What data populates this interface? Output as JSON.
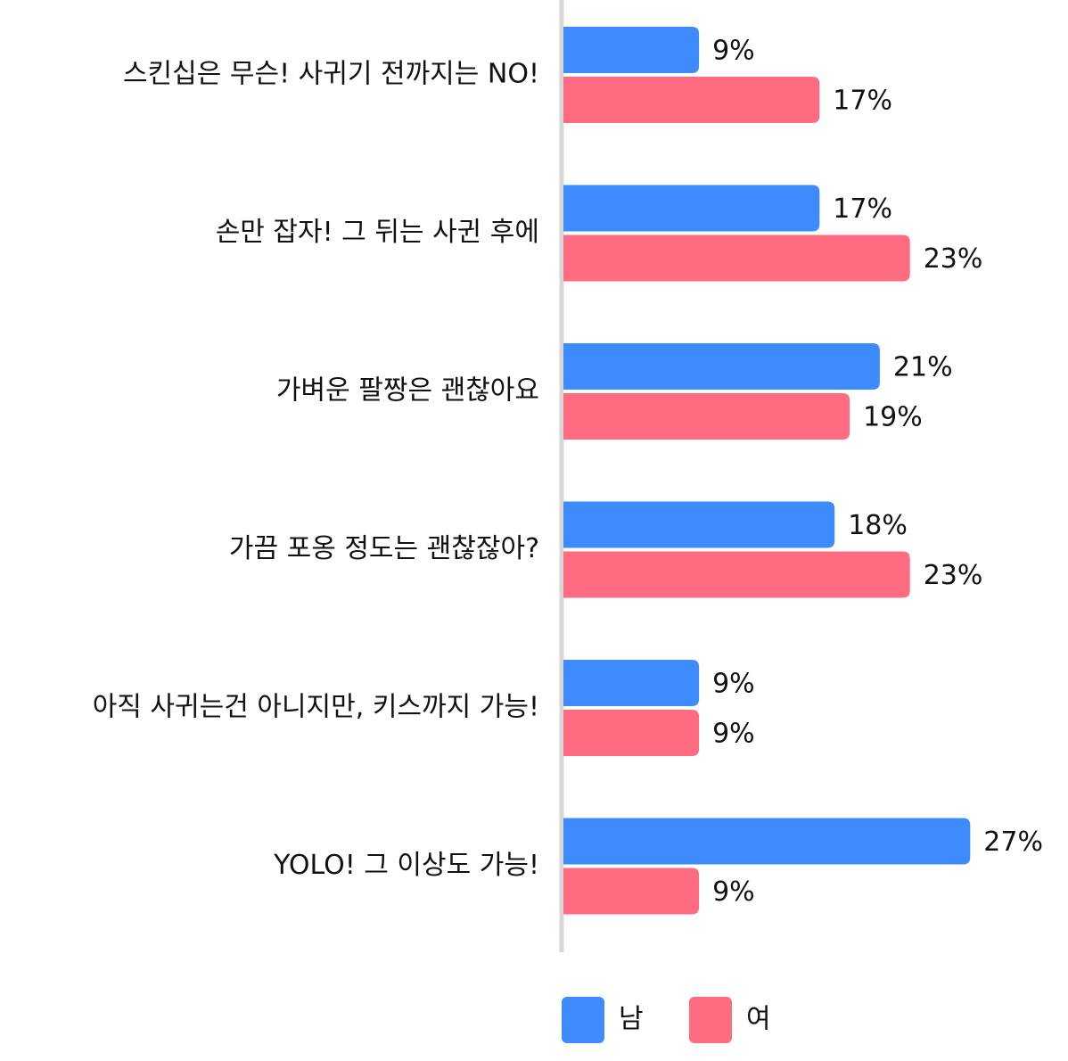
{
  "chart_data": {
    "type": "bar",
    "orientation": "horizontal",
    "categories": [
      "스킨십은 무슨! 사귀기 전까지는 NO!",
      "손만 잡자! 그 뒤는 사귄 후에",
      "가벼운 팔짱은 괜찮아요",
      "가끔 포옹 정도는 괜찮잖아?",
      "아직 사귀는건 아니지만, 키스까지 가능!",
      "YOLO! 그 이상도 가능!"
    ],
    "series": [
      {
        "name": "남",
        "color": "#3d8bfd",
        "values": [
          9,
          17,
          21,
          18,
          9,
          27
        ],
        "value_labels": [
          "9%",
          "17%",
          "21%",
          "18%",
          "9%",
          "27%"
        ]
      },
      {
        "name": "여",
        "color": "#ff6b81",
        "values": [
          17,
          23,
          19,
          23,
          9,
          9
        ],
        "value_labels": [
          "17%",
          "23%",
          "19%",
          "23%",
          "9%",
          "9%"
        ]
      }
    ],
    "xlim": [
      0,
      30
    ]
  }
}
